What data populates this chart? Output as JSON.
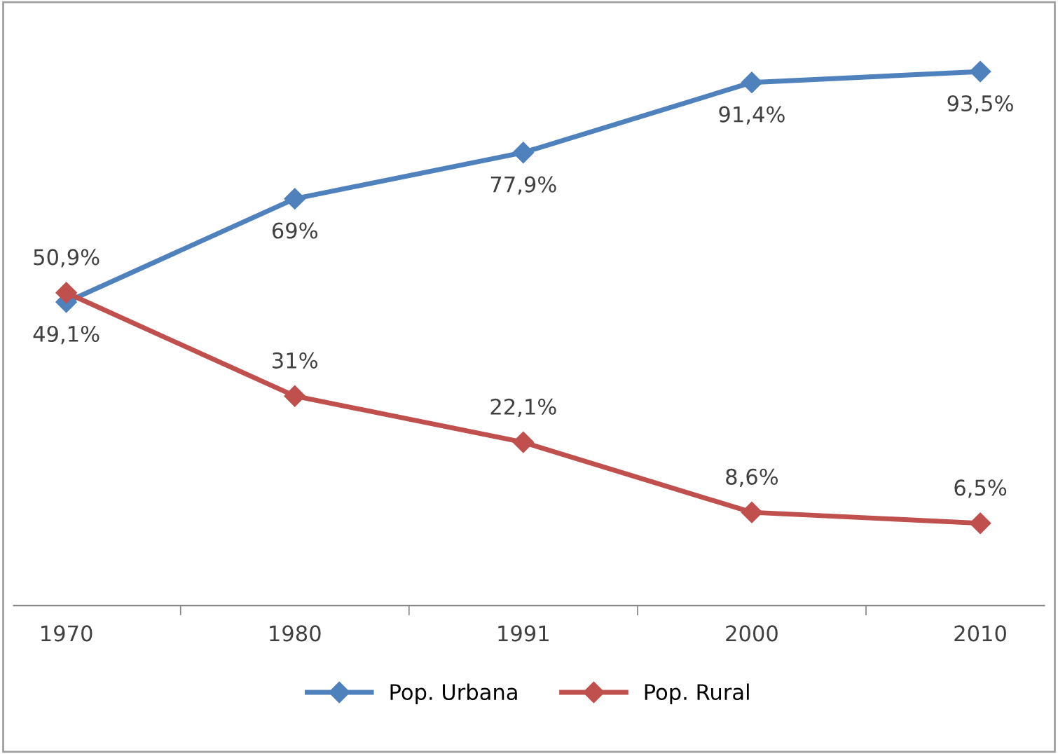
{
  "chart_data": {
    "type": "line",
    "categories": [
      "1970",
      "1980",
      "1991",
      "2000",
      "2010"
    ],
    "series": [
      {
        "name": "Pop. Urbana",
        "color": "#4f81bd",
        "values": [
          49.1,
          69,
          77.9,
          91.4,
          93.5
        ],
        "value_labels": [
          "49,1%",
          "69%",
          "77,9%",
          "91,4%",
          "93,5%"
        ]
      },
      {
        "name": "Pop. Rural",
        "color": "#c0504d",
        "values": [
          50.9,
          31,
          22.1,
          8.6,
          6.5
        ],
        "value_labels": [
          "50,9%",
          "31%",
          "22,1%",
          "8,6%",
          "6,5%"
        ]
      }
    ],
    "marker": "diamond",
    "line_style": "solid",
    "legend": "bottom",
    "grid": false
  }
}
